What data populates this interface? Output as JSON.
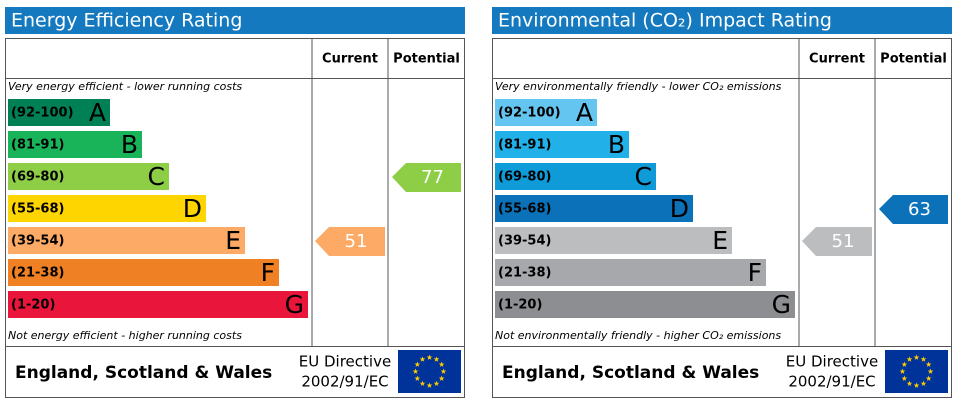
{
  "chart_data": [
    {
      "type": "epc",
      "title": "Energy Efficiency Rating",
      "columns": [
        "Current",
        "Potential"
      ],
      "top_note": "Very energy efficient - lower running costs",
      "bottom_note": "Not energy efficient - higher running costs",
      "bands": [
        {
          "range": "(92-100)",
          "letter": "A",
          "color": "#008054"
        },
        {
          "range": "(81-91)",
          "letter": "B",
          "color": "#19b459"
        },
        {
          "range": "(69-80)",
          "letter": "C",
          "color": "#8dce46"
        },
        {
          "range": "(55-68)",
          "letter": "D",
          "color": "#ffd500"
        },
        {
          "range": "(39-54)",
          "letter": "E",
          "color": "#fcaa65"
        },
        {
          "range": "(21-38)",
          "letter": "F",
          "color": "#ef8023"
        },
        {
          "range": "(1-20)",
          "letter": "G",
          "color": "#e9153b"
        }
      ],
      "current": 51,
      "potential": 77,
      "region": "England, Scotland & Wales",
      "directive": [
        "EU Directive",
        "2002/91/EC"
      ]
    },
    {
      "type": "epc",
      "title": "Environmental (CO₂) Impact Rating",
      "columns": [
        "Current",
        "Potential"
      ],
      "top_note": "Very environmentally friendly - lower CO₂ emissions",
      "bottom_note": "Not environmentally friendly - higher CO₂ emissions",
      "bands": [
        {
          "range": "(92-100)",
          "letter": "A",
          "color": "#63c5f0"
        },
        {
          "range": "(81-91)",
          "letter": "B",
          "color": "#21b0e8"
        },
        {
          "range": "(69-80)",
          "letter": "C",
          "color": "#0e9bd8"
        },
        {
          "range": "(55-68)",
          "letter": "D",
          "color": "#0b71b8"
        },
        {
          "range": "(39-54)",
          "letter": "E",
          "color": "#bbbdbf"
        },
        {
          "range": "(21-38)",
          "letter": "F",
          "color": "#a6a8ab"
        },
        {
          "range": "(1-20)",
          "letter": "G",
          "color": "#8c8e91"
        }
      ],
      "current": 51,
      "potential": 63,
      "region": "England, Scotland & Wales",
      "directive": [
        "EU Directive",
        "2002/91/EC"
      ]
    }
  ]
}
